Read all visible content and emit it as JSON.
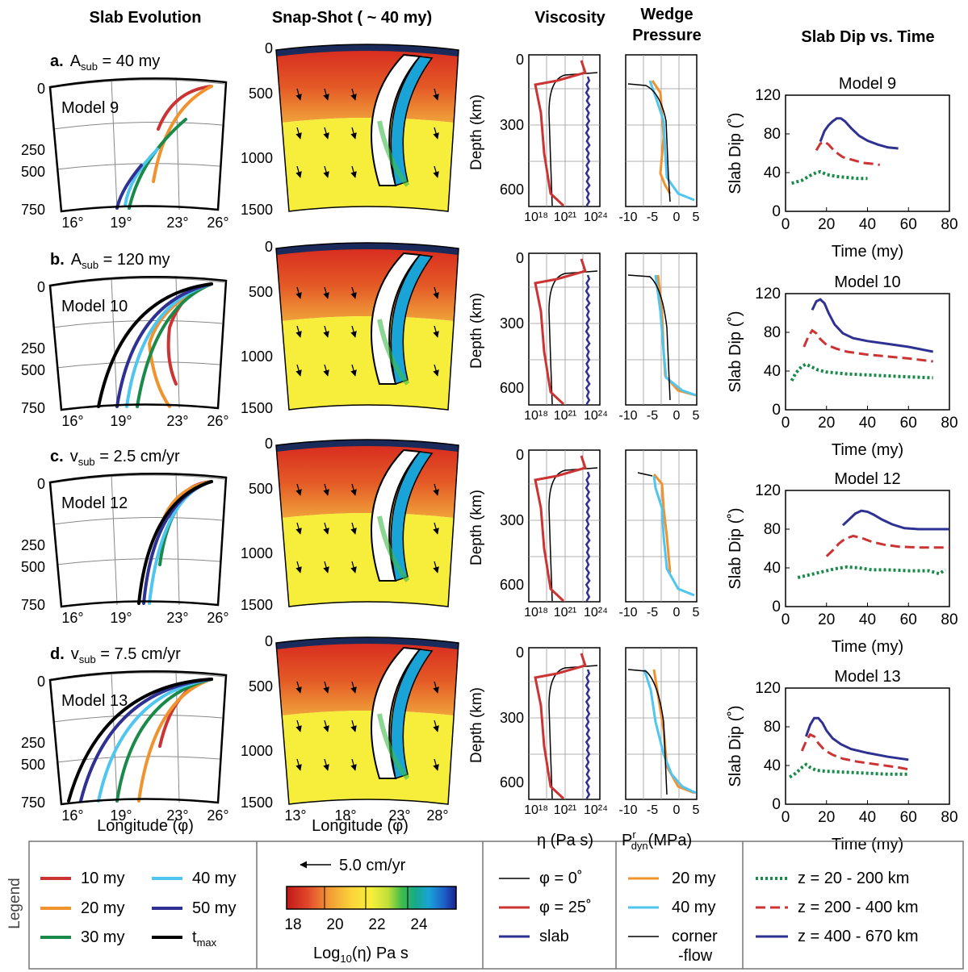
{
  "column_titles": {
    "slab_evolution": "Slab Evolution",
    "snapshot": "Snap-Shot ( ~ 40 my)",
    "viscosity": "Viscosity",
    "wedge_pressure_1": "Wedge",
    "wedge_pressure_2": "Pressure",
    "dip_vs_time": "Slab Dip vs. Time"
  },
  "rows": [
    {
      "letter": "a.",
      "param_sym": "A",
      "param_sub": "sub",
      "param_rest": " = 40 my",
      "model": "Model 9",
      "lon_ticks": [
        "16°",
        "19°",
        "23°",
        "26°"
      ]
    },
    {
      "letter": "b.",
      "param_sym": "A",
      "param_sub": "sub",
      "param_rest": " = 120 my",
      "model": "Model 10",
      "lon_ticks": [
        "16°",
        "19°",
        "23°",
        "26°"
      ]
    },
    {
      "letter": "c.",
      "param_sym": "v",
      "param_sub": "sub",
      "param_rest": " = 2.5 cm/yr",
      "model": "Model 12",
      "lon_ticks": [
        "16°",
        "19°",
        "23°",
        "26°"
      ]
    },
    {
      "letter": "d.",
      "param_sym": "v",
      "param_sub": "sub",
      "param_rest": " = 7.5 cm/yr",
      "model": "Model 13",
      "lon_ticks": [
        "16°",
        "19°",
        "23°",
        "26°"
      ]
    }
  ],
  "evolution_depth_ticks": [
    "0",
    "250",
    "500",
    "750"
  ],
  "snapshot_depth_ticks": [
    "0",
    "500",
    "1000",
    "1500"
  ],
  "snapshot_lon_ticks": [
    "13°",
    "18°",
    "23°",
    "28°"
  ],
  "viscosity_depth_ticks": [
    "0",
    "300",
    "600"
  ],
  "viscosity_x_ticks": [
    "10¹⁸",
    "10²¹",
    "10²⁴"
  ],
  "pressure_x_ticks": [
    "-10",
    "-5",
    "0",
    "5"
  ],
  "axis_labels": {
    "depth": "Depth (km)",
    "longitude": "Longitude (φ)",
    "eta": "η (Pa s)",
    "pdyn": "P",
    "pdyn_sup": "r",
    "pdyn_sub": "dyn",
    "pdyn_unit": "(MPa)",
    "slab_dip": "Slab Dip (˚)",
    "time": "Time (my)"
  },
  "legend": {
    "title": "Legend",
    "evolution": [
      {
        "label": "10 my",
        "color": "#cc3333"
      },
      {
        "label": "20 my",
        "color": "#f0922e"
      },
      {
        "label": "30 my",
        "color": "#1a8a4a"
      },
      {
        "label": "40 my",
        "color": "#4fc6ef"
      },
      {
        "label": "50 my",
        "color": "#2e3192"
      },
      {
        "label": "t",
        "label_sub": "max",
        "color": "#000000"
      }
    ],
    "velocity_ref": "5.0 cm/yr",
    "colorbar_ticks": [
      "18",
      "20",
      "22",
      "24"
    ],
    "colorbar_label": "Log",
    "colorbar_label_sub": "10",
    "colorbar_label_rest": "(η) Pa s",
    "viscosity": [
      {
        "label": "φ = 0˚",
        "color": "#000000"
      },
      {
        "label": "φ = 25˚",
        "color": "#cc3333"
      },
      {
        "label": "slab",
        "color": "#2e3192"
      }
    ],
    "pressure": [
      {
        "label": "20 my",
        "color": "#f0922e"
      },
      {
        "label": "40 my",
        "color": "#4fc6ef"
      },
      {
        "label": "corner",
        "label2": "-flow",
        "color": "#000000"
      }
    ],
    "dip": [
      {
        "label": "z =  20 - 200 km",
        "color": "#1a8a4a",
        "style": "dotted"
      },
      {
        "label": "z = 200 - 400 km",
        "color": "#cc3333",
        "style": "dashed"
      },
      {
        "label": "z = 400 - 670 km",
        "color": "#2e3192",
        "style": "solid"
      }
    ]
  },
  "chart_data": [
    {
      "type": "line",
      "title": "Model 9",
      "xlabel": "Time (my)",
      "ylabel": "Slab Dip (˚)",
      "xlim": [
        0,
        80
      ],
      "ylim": [
        0,
        120
      ],
      "xticks": [
        0,
        20,
        40,
        60,
        80
      ],
      "yticks": [
        0,
        40,
        80,
        120
      ],
      "series": [
        {
          "name": "z =  20 - 200 km",
          "color": "#1a8a4a",
          "style": "dotted",
          "x": [
            3,
            8,
            12,
            15,
            17,
            20,
            25,
            30,
            35,
            40
          ],
          "y": [
            29,
            32,
            37,
            40,
            41,
            38,
            36,
            35,
            34,
            34
          ]
        },
        {
          "name": "z = 200 - 400 km",
          "color": "#cc3333",
          "style": "dashed",
          "x": [
            15,
            17,
            19,
            21,
            24,
            28,
            33,
            38,
            43,
            46
          ],
          "y": [
            63,
            70,
            72,
            69,
            62,
            56,
            53,
            50,
            49,
            48
          ]
        },
        {
          "name": "z = 400 - 670 km",
          "color": "#2e3192",
          "style": "solid",
          "x": [
            17,
            19,
            21,
            23,
            25,
            27,
            29,
            32,
            36,
            40,
            45,
            50,
            55
          ],
          "y": [
            72,
            83,
            89,
            93,
            96,
            96,
            93,
            86,
            78,
            73,
            69,
            66,
            65
          ]
        }
      ]
    },
    {
      "type": "line",
      "title": "Model 10",
      "xlabel": "Time (my)",
      "ylabel": "Slab Dip (˚)",
      "xlim": [
        0,
        80
      ],
      "ylim": [
        0,
        120
      ],
      "xticks": [
        0,
        20,
        40,
        60,
        80
      ],
      "yticks": [
        0,
        40,
        80,
        120
      ],
      "series": [
        {
          "name": "z =  20 - 200 km",
          "color": "#1a8a4a",
          "style": "dotted",
          "x": [
            3,
            5,
            8,
            10,
            13,
            16,
            20,
            30,
            40,
            50,
            60,
            72
          ],
          "y": [
            30,
            38,
            45,
            47,
            44,
            41,
            39,
            37,
            36,
            35,
            34,
            33
          ]
        },
        {
          "name": "z = 200 - 400 km",
          "color": "#cc3333",
          "style": "dashed",
          "x": [
            9,
            11,
            13,
            15,
            17,
            20,
            25,
            30,
            40,
            50,
            60,
            72
          ],
          "y": [
            65,
            75,
            82,
            79,
            73,
            67,
            63,
            60,
            57,
            55,
            53,
            50
          ]
        },
        {
          "name": "z = 400 - 670 km",
          "color": "#2e3192",
          "style": "solid",
          "x": [
            13,
            15,
            17,
            19,
            21,
            24,
            28,
            33,
            40,
            50,
            60,
            72
          ],
          "y": [
            103,
            112,
            114,
            110,
            100,
            88,
            79,
            74,
            71,
            68,
            65,
            60
          ]
        }
      ]
    },
    {
      "type": "line",
      "title": "Model 12",
      "xlabel": "Time (my)",
      "ylabel": "Slab Dip (˚)",
      "xlim": [
        0,
        80
      ],
      "ylim": [
        0,
        120
      ],
      "xticks": [
        0,
        20,
        40,
        60,
        80
      ],
      "yticks": [
        0,
        40,
        80,
        120
      ],
      "series": [
        {
          "name": "z =  20 - 200 km",
          "color": "#1a8a4a",
          "style": "dotted",
          "x": [
            6,
            12,
            18,
            24,
            30,
            36,
            42,
            50,
            60,
            70,
            75,
            78
          ],
          "y": [
            30,
            33,
            36,
            39,
            41,
            40,
            38,
            38,
            37,
            37,
            34,
            38
          ]
        },
        {
          "name": "z = 200 - 400 km",
          "color": "#cc3333",
          "style": "dashed",
          "x": [
            20,
            23,
            26,
            29,
            33,
            37,
            42,
            48,
            55,
            65,
            75,
            80
          ],
          "y": [
            52,
            58,
            65,
            70,
            73,
            71,
            67,
            64,
            62,
            61,
            61,
            61
          ]
        },
        {
          "name": "z = 400 - 670 km",
          "color": "#2e3192",
          "style": "solid",
          "x": [
            28,
            31,
            34,
            37,
            40,
            43,
            47,
            52,
            58,
            65,
            72,
            80
          ],
          "y": [
            84,
            90,
            96,
            99,
            98,
            95,
            90,
            85,
            81,
            80,
            80,
            80
          ]
        }
      ]
    },
    {
      "type": "line",
      "title": "Model 13",
      "xlabel": "Time (my)",
      "ylabel": "Slab Dip (˚)",
      "xlim": [
        0,
        80
      ],
      "ylim": [
        0,
        120
      ],
      "xticks": [
        0,
        20,
        40,
        60,
        80
      ],
      "yticks": [
        0,
        40,
        80,
        120
      ],
      "series": [
        {
          "name": "z =  20 - 200 km",
          "color": "#1a8a4a",
          "style": "dotted",
          "x": [
            2,
            5,
            8,
            10,
            12,
            15,
            20,
            30,
            40,
            50,
            60
          ],
          "y": [
            28,
            32,
            38,
            41,
            38,
            35,
            34,
            33,
            32,
            31,
            31
          ]
        },
        {
          "name": "z = 200 - 400 km",
          "color": "#cc3333",
          "style": "dashed",
          "x": [
            8,
            10,
            12,
            14,
            16,
            19,
            23,
            28,
            35,
            45,
            55,
            60
          ],
          "y": [
            55,
            65,
            72,
            70,
            63,
            56,
            51,
            47,
            44,
            41,
            38,
            36
          ]
        },
        {
          "name": "z = 400 - 670 km",
          "color": "#2e3192",
          "style": "solid",
          "x": [
            10,
            12,
            14,
            16,
            18,
            20,
            23,
            27,
            32,
            40,
            50,
            60
          ],
          "y": [
            70,
            82,
            89,
            89,
            84,
            76,
            68,
            62,
            57,
            53,
            49,
            46
          ]
        }
      ]
    }
  ]
}
